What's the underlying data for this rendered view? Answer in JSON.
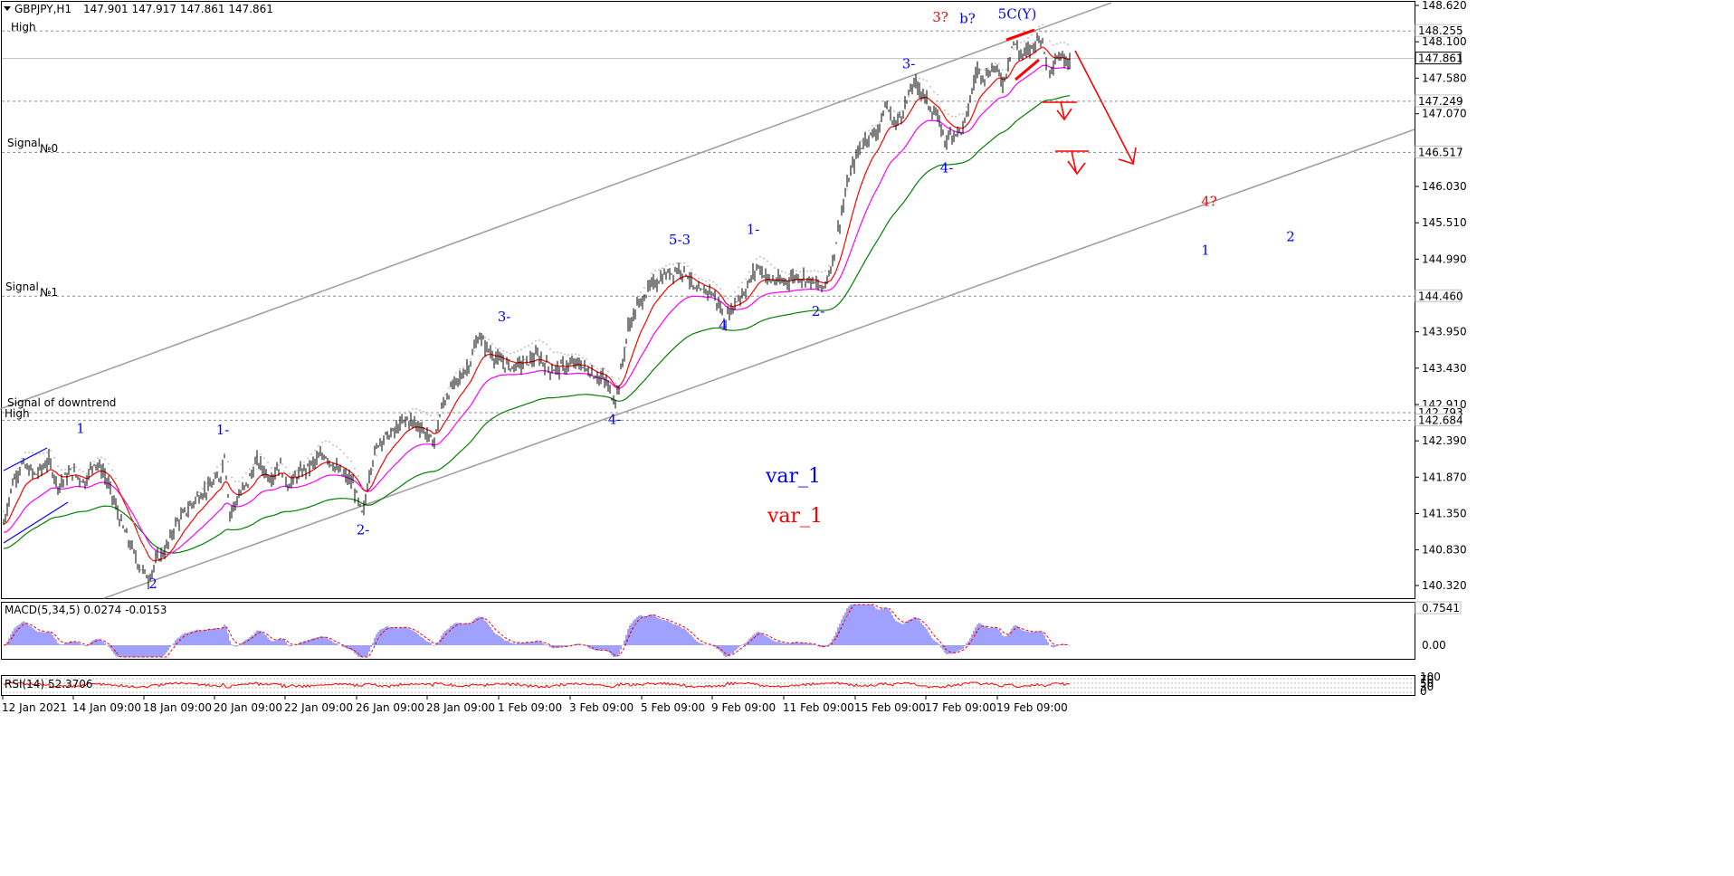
{
  "header": {
    "symbol": "GBPJPY,H1",
    "ohlc": "147.901 147.917 147.861 147.861"
  },
  "colors": {
    "candles": "#000000",
    "ma_red": "#ff0000",
    "ma_magenta": "#ff00ff",
    "ma_green": "#008000",
    "envelope": "#b4b4b4",
    "channel": "#a0a0a0",
    "wave_blue": "#0000ff",
    "wave_red": "#ff0000",
    "macd_bars": "#4040ff",
    "price_label_bg": "#ffffff"
  },
  "chart_data": [
    {
      "type": "candlestick",
      "yticks": [
        148.62,
        148.1,
        147.58,
        147.07,
        146.03,
        145.51,
        144.99,
        143.95,
        143.43,
        142.91,
        142.39,
        141.87,
        141.35,
        140.83,
        140.32
      ],
      "xticks": [
        "12 Jan 2021",
        "14 Jan 09:00",
        "18 Jan 09:00",
        "20 Jan 09:00",
        "22 Jan 09:00",
        "26 Jan 09:00",
        "28 Jan 09:00",
        "1 Feb 09:00",
        "3 Feb 09:00",
        "5 Feb 09:00",
        "9 Feb 09:00",
        "11 Feb 09:00",
        "15 Feb 09:00",
        "17 Feb 09:00",
        "19 Feb 09:00"
      ],
      "ylim": [
        140.2,
        148.67
      ],
      "current_price": 147.861,
      "price_path": [
        [
          0,
          141.2
        ],
        [
          10,
          141.8
        ],
        [
          20,
          142.05
        ],
        [
          35,
          141.9
        ],
        [
          50,
          142.1
        ],
        [
          60,
          141.75
        ],
        [
          75,
          141.95
        ],
        [
          90,
          141.8
        ],
        [
          100,
          142.1
        ],
        [
          110,
          141.95
        ],
        [
          120,
          141.6
        ],
        [
          130,
          141.2
        ],
        [
          140,
          140.9
        ],
        [
          150,
          140.6
        ],
        [
          160,
          140.42
        ],
        [
          170,
          140.7
        ],
        [
          180,
          140.85
        ],
        [
          190,
          141.2
        ],
        [
          200,
          141.35
        ],
        [
          215,
          141.6
        ],
        [
          230,
          141.75
        ],
        [
          240,
          141.9
        ],
        [
          244,
          142.2
        ],
        [
          250,
          141.35
        ],
        [
          258,
          141.55
        ],
        [
          270,
          141.8
        ],
        [
          280,
          142.1
        ],
        [
          295,
          141.85
        ],
        [
          305,
          142.05
        ],
        [
          315,
          141.75
        ],
        [
          325,
          141.9
        ],
        [
          340,
          142.05
        ],
        [
          355,
          142.2
        ],
        [
          370,
          141.95
        ],
        [
          385,
          141.8
        ],
        [
          397,
          141.3
        ],
        [
          405,
          142.0
        ],
        [
          415,
          142.4
        ],
        [
          430,
          142.5
        ],
        [
          445,
          142.7
        ],
        [
          460,
          142.6
        ],
        [
          475,
          142.35
        ],
        [
          485,
          142.9
        ],
        [
          495,
          143.15
        ],
        [
          505,
          143.3
        ],
        [
          515,
          143.5
        ],
        [
          525,
          143.9
        ],
        [
          535,
          143.7
        ],
        [
          545,
          143.55
        ],
        [
          560,
          143.45
        ],
        [
          575,
          143.5
        ],
        [
          590,
          143.6
        ],
        [
          605,
          143.4
        ],
        [
          620,
          143.45
        ],
        [
          635,
          143.5
        ],
        [
          650,
          143.35
        ],
        [
          665,
          143.25
        ],
        [
          675,
          142.95
        ],
        [
          680,
          143.2
        ],
        [
          690,
          144.0
        ],
        [
          700,
          144.3
        ],
        [
          715,
          144.6
        ],
        [
          730,
          144.75
        ],
        [
          745,
          144.85
        ],
        [
          755,
          144.8
        ],
        [
          765,
          144.5
        ],
        [
          780,
          144.55
        ],
        [
          790,
          144.35
        ],
        [
          797,
          144.1
        ],
        [
          810,
          144.4
        ],
        [
          820,
          144.55
        ],
        [
          833,
          144.9
        ],
        [
          845,
          144.7
        ],
        [
          860,
          144.65
        ],
        [
          875,
          144.75
        ],
        [
          890,
          144.7
        ],
        [
          905,
          144.55
        ],
        [
          915,
          144.9
        ],
        [
          925,
          145.6
        ],
        [
          935,
          146.2
        ],
        [
          945,
          146.55
        ],
        [
          955,
          146.75
        ],
        [
          965,
          146.8
        ],
        [
          975,
          147.2
        ],
        [
          985,
          146.9
        ],
        [
          995,
          147.15
        ],
        [
          1005,
          147.5
        ],
        [
          1012,
          147.45
        ],
        [
          1022,
          147.2
        ],
        [
          1032,
          147.0
        ],
        [
          1040,
          146.7
        ],
        [
          1050,
          146.8
        ],
        [
          1060,
          146.85
        ],
        [
          1067,
          147.2
        ],
        [
          1075,
          147.7
        ],
        [
          1085,
          147.6
        ],
        [
          1095,
          147.75
        ],
        [
          1105,
          147.5
        ],
        [
          1115,
          148.1
        ],
        [
          1125,
          147.9
        ],
        [
          1135,
          148.0
        ],
        [
          1145,
          148.2
        ],
        [
          1155,
          147.7
        ],
        [
          1165,
          147.9
        ],
        [
          1175,
          147.85
        ],
        [
          1180,
          147.86
        ]
      ],
      "indicators": [
        "red moving average",
        "magenta moving average",
        "green moving average",
        "envelope dots"
      ]
    },
    {
      "type": "bar",
      "title": "MACD(5,34,5) 0.0274 -0.0153",
      "yticks": [
        0.7541,
        0.0
      ],
      "ytick_labels": [
        "0.7541",
        "0.00"
      ]
    },
    {
      "type": "line",
      "title": "RSI(14) 52.3706",
      "yticks": [
        "100",
        "70",
        "50",
        "30",
        "0"
      ]
    }
  ],
  "levels": [
    {
      "value": 148.255,
      "label": "148.255"
    },
    {
      "value": 147.249,
      "label": "147.249"
    },
    {
      "value": 146.517,
      "label": "146.517"
    },
    {
      "value": 144.46,
      "label": "144.460"
    },
    {
      "value": 142.793,
      "label": "142.793"
    },
    {
      "value": 142.684,
      "label": "142.684"
    }
  ],
  "text_labels": {
    "high_top": "High",
    "signal0": "Signal",
    "signal0_no": "№0",
    "signal1": "Signal",
    "signal1_no": "№1",
    "downtrend": "Signal of downtrend",
    "high_low": "High",
    "var_blue": "var_1",
    "var_red": "var_1"
  },
  "wave_labels": [
    {
      "text": "1",
      "price": 142.5,
      "bar": 85,
      "color": "blue"
    },
    {
      "text": "2",
      "price": 140.28,
      "bar": 165,
      "color": "blue"
    },
    {
      "text": "1-",
      "price": 142.48,
      "bar": 242,
      "color": "blue"
    },
    {
      "text": "2-",
      "price": 141.05,
      "bar": 397,
      "color": "blue"
    },
    {
      "text": "3-",
      "price": 144.1,
      "bar": 553,
      "color": "blue"
    },
    {
      "text": "4-",
      "price": 142.63,
      "bar": 675,
      "color": "blue"
    },
    {
      "text": "5-3",
      "price": 145.2,
      "bar": 747,
      "color": "blue"
    },
    {
      "text": "4",
      "price": 143.98,
      "bar": 795,
      "color": "blue"
    },
    {
      "text": "1-",
      "price": 145.35,
      "bar": 828,
      "color": "blue"
    },
    {
      "text": "2-",
      "price": 144.18,
      "bar": 900,
      "color": "blue"
    },
    {
      "text": "3-",
      "price": 147.72,
      "bar": 1000,
      "color": "blue"
    },
    {
      "text": "4-",
      "price": 146.23,
      "bar": 1042,
      "color": "blue"
    },
    {
      "text": "5C(Y)",
      "price": 148.43,
      "bar": 1120,
      "color": "blue"
    },
    {
      "text": "b?",
      "price": 148.37,
      "bar": 1065,
      "color": "blue"
    },
    {
      "text": "3?",
      "price": 148.39,
      "bar": 1035,
      "color": "red"
    },
    {
      "text": "4?",
      "price": 145.75,
      "bar": 1332,
      "color": "red"
    },
    {
      "text": "1",
      "price": 145.05,
      "bar": 1328,
      "color": "blue"
    },
    {
      "text": "2",
      "price": 145.25,
      "bar": 1422,
      "color": "blue"
    }
  ]
}
